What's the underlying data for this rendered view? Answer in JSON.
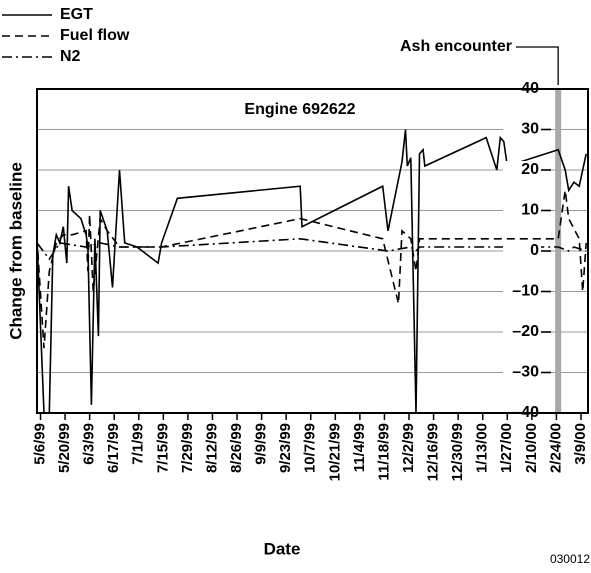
{
  "chart_data": {
    "type": "line",
    "subtitle": "Engine 692622",
    "xlabel": "Date",
    "ylabel": "Change from baseline",
    "footnote": "030012",
    "annotation": {
      "text": "Ash encounter",
      "x": "2000-02-25"
    },
    "xlim": [
      "1999-05-04",
      "2000-03-13"
    ],
    "xticks": [
      {
        "value": "1999-05-06",
        "label": "5/6/99"
      },
      {
        "value": "1999-05-20",
        "label": "5/20/99"
      },
      {
        "value": "1999-06-03",
        "label": "6/3/99"
      },
      {
        "value": "1999-06-17",
        "label": "6/17/99"
      },
      {
        "value": "1999-07-01",
        "label": "7/1/99"
      },
      {
        "value": "1999-07-15",
        "label": "7/15/99"
      },
      {
        "value": "1999-07-29",
        "label": "7/29/99"
      },
      {
        "value": "1999-08-12",
        "label": "8/12/99"
      },
      {
        "value": "1999-08-26",
        "label": "8/26/99"
      },
      {
        "value": "1999-09-09",
        "label": "9/9/99"
      },
      {
        "value": "1999-09-23",
        "label": "9/23/99"
      },
      {
        "value": "1999-10-07",
        "label": "10/7/99"
      },
      {
        "value": "1999-10-21",
        "label": "10/21/99"
      },
      {
        "value": "1999-11-04",
        "label": "11/4/99"
      },
      {
        "value": "1999-11-18",
        "label": "11/18/99"
      },
      {
        "value": "1999-12-02",
        "label": "12/2/99"
      },
      {
        "value": "1999-12-16",
        "label": "12/16/99"
      },
      {
        "value": "1999-12-30",
        "label": "12/30/99"
      },
      {
        "value": "2000-01-13",
        "label": "1/13/00"
      },
      {
        "value": "2000-01-27",
        "label": "1/27/00"
      },
      {
        "value": "2000-02-10",
        "label": "2/10/00"
      },
      {
        "value": "2000-02-24",
        "label": "2/24/00"
      },
      {
        "value": "2000-03-09",
        "label": "3/9/00"
      }
    ],
    "ylim": [
      -40,
      40
    ],
    "yticks": [
      40,
      30,
      20,
      10,
      0,
      {
        "value": -10,
        "label": "–10"
      },
      {
        "value": -20,
        "label": "–20"
      },
      {
        "value": -30,
        "label": "–30"
      },
      {
        "value": -40,
        "label": "–40"
      }
    ],
    "grid": true,
    "legend": "top-left",
    "series": [
      {
        "name": "EGT",
        "color": "#000000",
        "dash": "solid",
        "x": [
          "1999-05-04",
          "1999-05-08",
          "1999-05-11",
          "1999-05-13",
          "1999-05-15",
          "1999-05-17",
          "1999-05-19",
          "1999-05-21",
          "1999-05-22",
          "1999-05-24",
          "1999-05-29",
          "1999-06-01",
          "1999-06-02",
          "1999-06-04",
          "1999-06-06",
          "1999-06-08",
          "1999-06-09",
          "1999-06-13",
          "1999-06-16",
          "1999-06-20",
          "1999-06-23",
          "1999-06-30",
          "1999-07-12",
          "1999-07-14",
          "1999-07-23",
          "1999-10-01",
          "1999-10-02",
          "1999-11-17",
          "1999-11-20",
          "1999-11-28",
          "1999-11-30",
          "1999-12-01",
          "1999-12-03",
          "1999-12-06",
          "1999-12-08",
          "1999-12-10",
          "1999-12-11",
          "2000-01-15",
          "2000-01-21",
          "2000-01-23",
          "2000-01-25",
          "2000-01-27",
          "2000-02-25",
          "2000-02-29",
          "2000-03-02",
          "2000-03-05",
          "2000-03-08",
          "2000-03-12"
        ],
        "values": [
          3,
          -40,
          -40,
          -1,
          4,
          2,
          6,
          -3,
          16,
          10,
          8,
          4,
          1,
          -38,
          3,
          -21,
          10,
          5,
          -9,
          20,
          2,
          1,
          -3,
          2,
          13,
          16,
          6,
          16,
          5,
          22,
          30,
          21,
          23,
          -40,
          24,
          25,
          21,
          28,
          20,
          28,
          27,
          21,
          25,
          20,
          15,
          17,
          16,
          24
        ]
      },
      {
        "name": "Fuel flow",
        "color": "#000000",
        "dash": "dashed",
        "x": [
          "1999-05-04",
          "1999-05-08",
          "1999-05-11",
          "1999-05-15",
          "1999-05-19",
          "1999-05-24",
          "1999-06-01",
          "1999-06-02",
          "1999-06-03",
          "1999-06-05",
          "1999-06-09",
          "1999-06-13",
          "1999-06-20",
          "1999-07-14",
          "1999-10-01",
          "1999-11-17",
          "1999-11-26",
          "1999-11-28",
          "1999-12-03",
          "1999-12-06",
          "1999-12-08",
          "2000-01-21",
          "2000-02-25",
          "2000-02-29",
          "2000-03-02",
          "2000-03-08",
          "2000-03-10",
          "2000-03-12"
        ],
        "values": [
          3,
          -24,
          -5,
          2,
          4,
          4,
          5,
          -5,
          9,
          -10,
          8,
          5,
          1,
          1,
          8,
          3,
          -13,
          5,
          3,
          -5,
          3,
          3,
          3,
          15,
          8,
          3,
          -10,
          2
        ]
      },
      {
        "name": "N2",
        "color": "#000000",
        "dash": "dashdot",
        "x": [
          "1999-05-04",
          "1999-05-11",
          "1999-05-17",
          "1999-06-01",
          "1999-06-09",
          "1999-06-20",
          "1999-07-14",
          "1999-10-01",
          "1999-11-20",
          "1999-12-03",
          "1999-12-06",
          "1999-12-08",
          "2000-01-21",
          "2000-02-25",
          "2000-03-02",
          "2000-03-05",
          "2000-03-12"
        ],
        "values": [
          2,
          -2,
          2,
          1,
          2,
          1,
          1,
          3,
          0,
          1,
          0,
          1,
          1,
          1,
          0,
          1,
          0
        ]
      }
    ]
  }
}
